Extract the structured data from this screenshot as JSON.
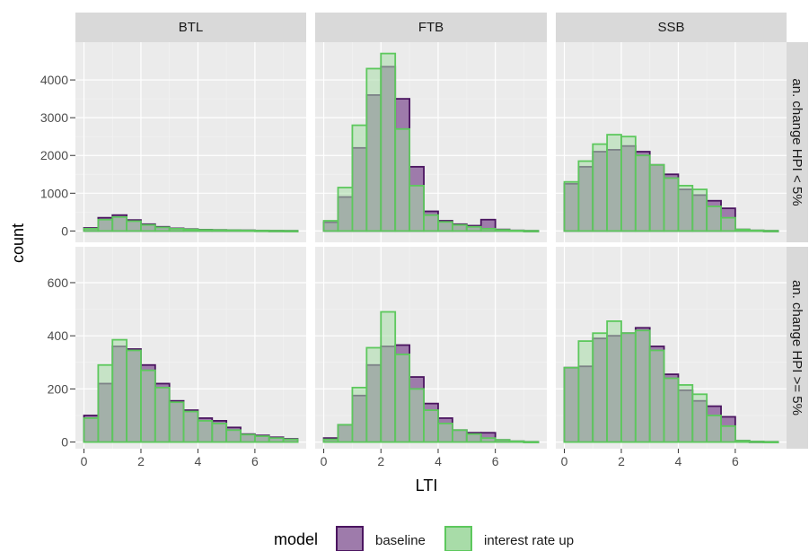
{
  "colors": {
    "panel_bg": "#EBEBEB",
    "grid_major": "#FFFFFF",
    "grid_minor": "#F2F2F2",
    "strip_bg": "#D9D9D9",
    "baseline_fill": "#9E7BAB",
    "baseline_stroke": "#4B1560",
    "interest_fill": "#A8DCA8",
    "interest_stroke": "#5DC85D",
    "tick": "#333333"
  },
  "chart_data": {
    "type": "histogram",
    "xlabel": "LTI",
    "ylabel": "count",
    "legend_title": "model",
    "legend_position": "bottom",
    "grid": true,
    "col_facets": [
      "BTL",
      "FTB",
      "SSB"
    ],
    "row_facets": [
      "an. change HPI < 5%",
      "an. change HPI >= 5%"
    ],
    "xlim": [
      -0.3,
      7.8
    ],
    "x_ticks": [
      0,
      2,
      4,
      6
    ],
    "bin_width": 0.5,
    "bin_centers": [
      0.25,
      0.75,
      1.25,
      1.75,
      2.25,
      2.75,
      3.25,
      3.75,
      4.25,
      4.75,
      5.25,
      5.75,
      6.25,
      6.75,
      7.25
    ],
    "rows": [
      {
        "label": "an. change HPI < 5%",
        "ylim": [
          -300,
          5000
        ],
        "y_ticks": [
          0,
          1000,
          2000,
          3000,
          4000
        ],
        "panels": [
          {
            "facet": "BTL",
            "series": [
              {
                "name": "baseline",
                "values": [
                  80,
                  350,
                  420,
                  290,
                  180,
                  110,
                  70,
                  50,
                  35,
                  28,
                  22,
                  18,
                  12,
                  8,
                  5
                ]
              },
              {
                "name": "interest rate up",
                "values": [
                  60,
                  300,
                  370,
                  260,
                  160,
                  95,
                  60,
                  42,
                  30,
                  25,
                  20,
                  15,
                  10,
                  7,
                  4
                ]
              }
            ]
          },
          {
            "facet": "FTB",
            "series": [
              {
                "name": "baseline",
                "values": [
                  230,
                  900,
                  2200,
                  3600,
                  4350,
                  3500,
                  1700,
                  520,
                  270,
                  180,
                  140,
                  300,
                  40,
                  15,
                  5
                ]
              },
              {
                "name": "interest rate up",
                "values": [
                  270,
                  1150,
                  2800,
                  4300,
                  4700,
                  2700,
                  1200,
                  420,
                  240,
                  160,
                  110,
                  60,
                  30,
                  12,
                  5
                ]
              }
            ]
          },
          {
            "facet": "SSB",
            "series": [
              {
                "name": "baseline",
                "values": [
                  1250,
                  1700,
                  2100,
                  2150,
                  2250,
                  2100,
                  1750,
                  1500,
                  1100,
                  950,
                  800,
                  600,
                  40,
                  15,
                  5
                ]
              },
              {
                "name": "interest rate up",
                "values": [
                  1300,
                  1850,
                  2300,
                  2550,
                  2500,
                  2000,
                  1750,
                  1400,
                  1200,
                  1100,
                  650,
                  350,
                  40,
                  15,
                  5
                ]
              }
            ]
          }
        ]
      },
      {
        "label": "an. change HPI >= 5%",
        "ylim": [
          -25,
          735
        ],
        "y_ticks": [
          0,
          200,
          400,
          600
        ],
        "panels": [
          {
            "facet": "BTL",
            "series": [
              {
                "name": "baseline",
                "values": [
                  100,
                  220,
                  360,
                  350,
                  290,
                  220,
                  155,
                  120,
                  90,
                  80,
                  55,
                  30,
                  25,
                  18,
                  12
                ]
              },
              {
                "name": "interest rate up",
                "values": [
                  90,
                  290,
                  385,
                  345,
                  270,
                  205,
                  150,
                  115,
                  80,
                  70,
                  45,
                  28,
                  22,
                  15,
                  10
                ]
              }
            ]
          },
          {
            "facet": "FTB",
            "series": [
              {
                "name": "baseline",
                "values": [
                  15,
                  65,
                  175,
                  290,
                  360,
                  365,
                  245,
                  145,
                  90,
                  45,
                  35,
                  35,
                  8,
                  3,
                  1
                ]
              },
              {
                "name": "interest rate up",
                "values": [
                  10,
                  65,
                  205,
                  355,
                  490,
                  330,
                  200,
                  120,
                  70,
                  45,
                  30,
                  15,
                  8,
                  3,
                  1
                ]
              }
            ]
          },
          {
            "facet": "SSB",
            "series": [
              {
                "name": "baseline",
                "values": [
                  280,
                  285,
                  390,
                  400,
                  410,
                  430,
                  360,
                  255,
                  195,
                  155,
                  135,
                  95,
                  5,
                  2,
                  1
                ]
              },
              {
                "name": "interest rate up",
                "values": [
                  280,
                  380,
                  410,
                  455,
                  410,
                  420,
                  345,
                  240,
                  215,
                  180,
                  100,
                  60,
                  5,
                  2,
                  1
                ]
              }
            ]
          }
        ]
      }
    ],
    "legend": [
      {
        "name": "baseline"
      },
      {
        "name": "interest rate up"
      }
    ]
  }
}
